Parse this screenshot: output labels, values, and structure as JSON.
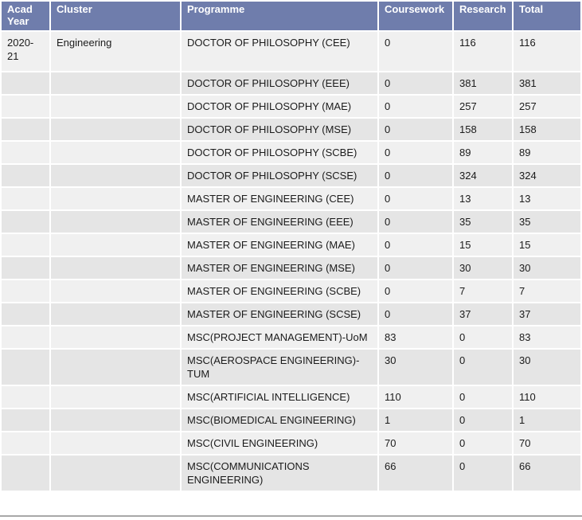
{
  "table": {
    "columns": [
      {
        "key": "acad_year",
        "label": "Acad Year"
      },
      {
        "key": "cluster",
        "label": "Cluster"
      },
      {
        "key": "programme",
        "label": "Programme"
      },
      {
        "key": "coursework",
        "label": "Coursework"
      },
      {
        "key": "research",
        "label": "Research"
      },
      {
        "key": "total",
        "label": "Total"
      }
    ],
    "rows": [
      [
        "2020-21",
        "Engineering",
        "DOCTOR OF PHILOSOPHY (CEE)",
        "0",
        "116",
        "116"
      ],
      [
        "",
        "",
        "DOCTOR OF PHILOSOPHY (EEE)",
        "0",
        "381",
        "381"
      ],
      [
        "",
        "",
        "DOCTOR OF PHILOSOPHY (MAE)",
        "0",
        "257",
        "257"
      ],
      [
        "",
        "",
        "DOCTOR OF PHILOSOPHY (MSE)",
        "0",
        "158",
        "158"
      ],
      [
        "",
        "",
        "DOCTOR OF PHILOSOPHY (SCBE)",
        "0",
        "89",
        "89"
      ],
      [
        "",
        "",
        "DOCTOR OF PHILOSOPHY (SCSE)",
        "0",
        "324",
        "324"
      ],
      [
        "",
        "",
        "MASTER OF ENGINEERING (CEE)",
        "0",
        "13",
        "13"
      ],
      [
        "",
        "",
        "MASTER OF ENGINEERING (EEE)",
        "0",
        "35",
        "35"
      ],
      [
        "",
        "",
        "MASTER OF ENGINEERING (MAE)",
        "0",
        "15",
        "15"
      ],
      [
        "",
        "",
        "MASTER OF ENGINEERING (MSE)",
        "0",
        "30",
        "30"
      ],
      [
        "",
        "",
        "MASTER OF ENGINEERING (SCBE)",
        "0",
        "7",
        "7"
      ],
      [
        "",
        "",
        "MASTER OF ENGINEERING (SCSE)",
        "0",
        "37",
        "37"
      ],
      [
        "",
        "",
        "MSC(PROJECT MANAGEMENT)-UoM",
        "83",
        "0",
        "83"
      ],
      [
        "",
        "",
        "MSC(AEROSPACE ENGINEERING)-TUM",
        "30",
        "0",
        "30"
      ],
      [
        "",
        "",
        "MSC(ARTIFICIAL INTELLIGENCE)",
        "110",
        "0",
        "110"
      ],
      [
        "",
        "",
        "MSC(BIOMEDICAL ENGINEERING)",
        "1",
        "0",
        "1"
      ],
      [
        "",
        "",
        "MSC(CIVIL ENGINEERING)",
        "70",
        "0",
        "70"
      ],
      [
        "",
        "",
        "MSC(COMMUNICATIONS ENGINEERING)",
        "66",
        "0",
        "66"
      ]
    ]
  },
  "colors": {
    "header_bg": "#6F7DAC",
    "header_text": "#FFFFFF",
    "row_light": "#F0F0F0",
    "row_dark": "#E5E5E5",
    "cell_text": "#1B1B1B",
    "bottom_border": "#A8A8A8",
    "separator": "#FFFFFF"
  }
}
